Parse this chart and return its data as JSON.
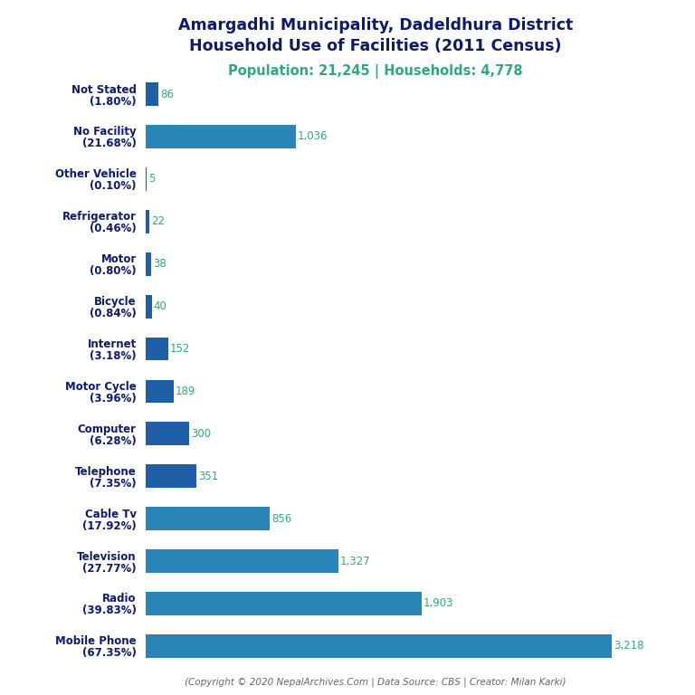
{
  "title_line1": "Amargadhi Municipality, Dadeldhura District",
  "title_line2": "Household Use of Facilities (2011 Census)",
  "subtitle": "Population: 21,245 | Households: 4,778",
  "copyright": "(Copyright © 2020 NepalArchives.Com | Data Source: CBS | Creator: Milan Karki)",
  "categories": [
    "Not Stated\n(1.80%)",
    "No Facility\n(21.68%)",
    "Other Vehicle\n(0.10%)",
    "Refrigerator\n(0.46%)",
    "Motor\n(0.80%)",
    "Bicycle\n(0.84%)",
    "Internet\n(3.18%)",
    "Motor Cycle\n(3.96%)",
    "Computer\n(6.28%)",
    "Telephone\n(7.35%)",
    "Cable Tv\n(17.92%)",
    "Television\n(27.77%)",
    "Radio\n(39.83%)",
    "Mobile Phone\n(67.35%)"
  ],
  "values": [
    86,
    1036,
    5,
    22,
    38,
    40,
    152,
    189,
    300,
    351,
    856,
    1327,
    1903,
    3218
  ],
  "bar_colors": [
    "#2878b0",
    "#2878b0",
    "#2878b0",
    "#2878b0",
    "#1c5c9c",
    "#1c5c9c",
    "#1c5c9c",
    "#1c5c9c",
    "#1c5c9c",
    "#1c5c9c",
    "#2878b0",
    "#2878b0",
    "#2878b0",
    "#2878b0"
  ],
  "value_color": "#2eaa7a",
  "title_color": "#0d1a6e",
  "subtitle_color": "#2eaa7a",
  "label_color": "#0d1a6e",
  "copyright_color": "#666666",
  "background_color": "#ffffff",
  "xlim": [
    0,
    3600
  ],
  "figsize": [
    7.68,
    7.68
  ],
  "dpi": 100
}
